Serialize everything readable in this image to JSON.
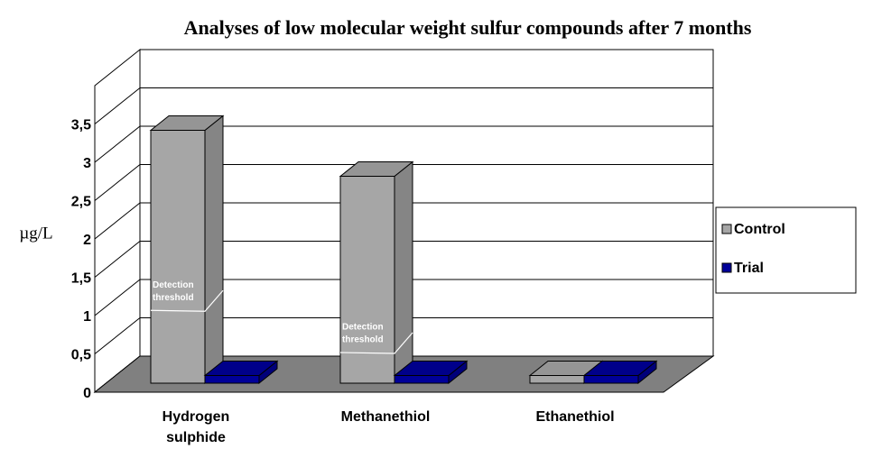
{
  "chart_data": {
    "type": "bar3d",
    "title": "Analyses of low molecular weight sulfur compounds after 7 months",
    "ylabel": "µg/L",
    "categories": [
      "Hydrogen sulphide",
      "Methanethiol",
      "Ethanethiol"
    ],
    "series": [
      {
        "name": "Control",
        "color": "#a6a6a6",
        "values": [
          3.3,
          2.7,
          0.1
        ]
      },
      {
        "name": "Trial",
        "color": "#000099",
        "values": [
          0.1,
          0.1,
          0.1
        ]
      }
    ],
    "ylim": [
      0,
      4
    ],
    "yticks": [
      0,
      {
        "value": 0.5,
        "label": "0,5"
      },
      1,
      {
        "value": 1.5,
        "label": "1,5"
      },
      2,
      {
        "value": 2.5,
        "label": "2,5"
      },
      3,
      {
        "value": 3.5,
        "label": "3,5"
      }
    ],
    "grid": true,
    "legend": "right",
    "annotations": [
      {
        "text_lines": [
          "Detection",
          "threshold"
        ],
        "category": 0,
        "value": 0.95
      },
      {
        "text_lines": [
          "Detection",
          "threshold"
        ],
        "category": 1,
        "value": 0.4
      }
    ]
  }
}
